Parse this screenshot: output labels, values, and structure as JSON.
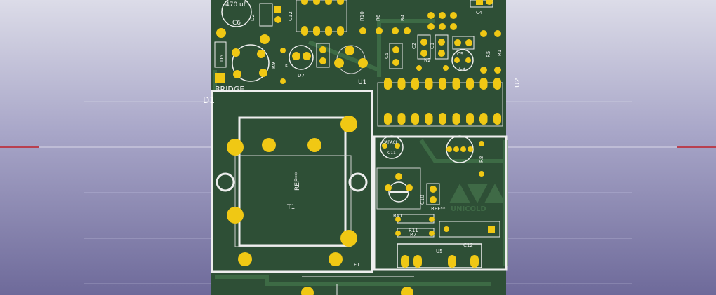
{
  "view": {
    "title": "",
    "background_top": "#dcdce8",
    "background_bottom": "#6e6a9a",
    "board_color": "#2e4f36",
    "pad_color": "#f0c814",
    "silk_color": "#f0f0f0",
    "axis_color": "#c0202a"
  },
  "labels": {
    "c6_value": "470 uF",
    "c6": "C6",
    "d2": "D2",
    "c12_top": "C12",
    "r10": "R10",
    "r6": "R6",
    "r4": "R4",
    "c4": "C4",
    "d6": "D6",
    "r9": "R9",
    "k": "K",
    "d7": "D7",
    "c5": "C5",
    "c2": "C2",
    "c1": "C1",
    "n2": "N2",
    "c9": "C9",
    "c3": "C3",
    "r5": "R5",
    "r1": "R1",
    "u1": "U1",
    "u2": "U2",
    "bridge": "BRIDGE",
    "d1": "D1",
    "capacitor": "CAPACI",
    "c11": "C11",
    "r8": "R8",
    "ref_t1": "REF**",
    "t1": "T1",
    "c10": "C10",
    "ref_logo": "REF**",
    "logo": "UNICOLD",
    "rv1": "RV1",
    "r11": "R11",
    "r7": "R7",
    "c12": "C12",
    "u5": "U5",
    "f1": "F1"
  }
}
